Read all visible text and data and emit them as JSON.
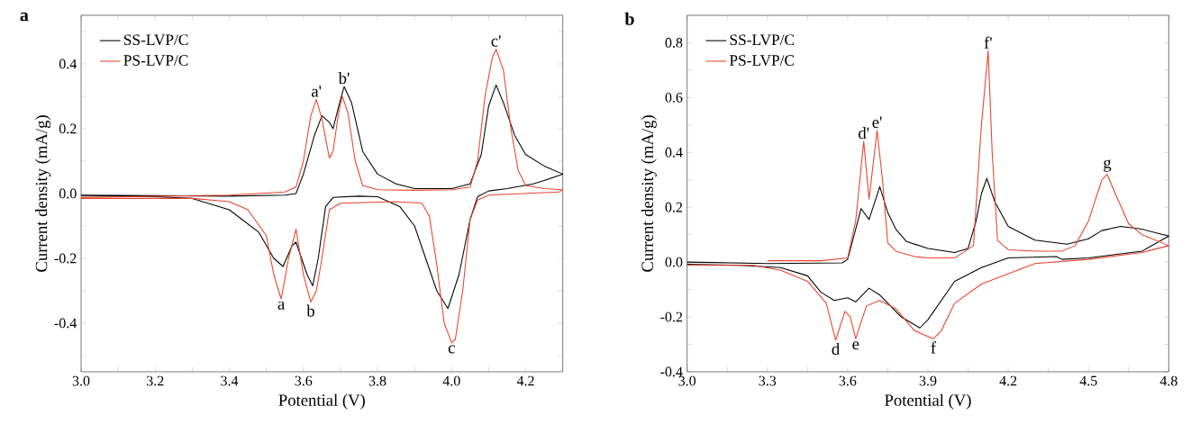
{
  "chart_data": [
    {
      "type": "line",
      "title": "a",
      "xlabel": "Potential (V)",
      "ylabel": "Current density (mA/g)",
      "xlim": [
        3.0,
        4.3
      ],
      "ylim": [
        -0.55,
        0.55
      ],
      "xticks": [
        {
          "value": 3.0,
          "label": "3.0"
        },
        {
          "value": 3.1,
          "label": null
        },
        3.2,
        {
          "value": 3.3,
          "label": null
        },
        3.4,
        {
          "value": 3.5,
          "label": null
        },
        3.6,
        {
          "value": 3.7,
          "label": null
        },
        3.8,
        {
          "value": 3.9,
          "label": null
        },
        {
          "value": 4.0,
          "label": "4.0"
        },
        {
          "value": 4.1,
          "label": null
        },
        4.2
      ],
      "yticks": [
        {
          "value": -0.5,
          "label": null
        },
        -0.4,
        {
          "value": -0.3,
          "label": null
        },
        -0.2,
        {
          "value": -0.1,
          "label": null
        },
        {
          "value": 0.0,
          "label": "0.0"
        },
        {
          "value": 0.1,
          "label": null
        },
        0.2,
        {
          "value": 0.3,
          "label": null
        },
        0.4,
        {
          "value": 0.5,
          "label": null
        }
      ],
      "grid": false,
      "legend": "top left",
      "marker": "none",
      "line_style": "solid",
      "series": [
        {
          "name": "SS-LVP/C",
          "color": "#000000",
          "x": [
            3.0,
            3.4,
            3.55,
            3.58,
            3.6,
            3.63,
            3.65,
            3.67,
            3.68,
            3.7,
            3.71,
            3.73,
            3.76,
            3.8,
            3.85,
            3.9,
            4.0,
            4.05,
            4.08,
            4.1,
            4.12,
            4.14,
            4.17,
            4.2,
            4.25,
            4.3,
            4.25,
            4.22,
            4.15,
            4.1,
            4.07,
            4.05,
            4.02,
            3.99,
            3.96,
            3.93,
            3.9,
            3.86,
            3.8,
            3.75,
            3.68,
            3.66,
            3.64,
            3.625,
            3.61,
            3.58,
            3.57,
            3.545,
            3.52,
            3.48,
            3.4,
            3.3,
            3.2,
            3.0
          ],
          "values": [
            -0.005,
            -0.008,
            -0.005,
            0.0,
            0.06,
            0.18,
            0.24,
            0.22,
            0.2,
            0.29,
            0.33,
            0.28,
            0.13,
            0.06,
            0.03,
            0.015,
            0.015,
            0.03,
            0.12,
            0.27,
            0.335,
            0.28,
            0.18,
            0.12,
            0.085,
            0.06,
            0.04,
            0.03,
            0.015,
            0.008,
            -0.01,
            -0.08,
            -0.25,
            -0.355,
            -0.3,
            -0.2,
            -0.1,
            -0.04,
            -0.01,
            -0.008,
            -0.012,
            -0.04,
            -0.2,
            -0.285,
            -0.25,
            -0.15,
            -0.16,
            -0.225,
            -0.2,
            -0.12,
            -0.05,
            -0.015,
            -0.01,
            -0.007
          ]
        },
        {
          "name": "PS-LVP/C",
          "color": "#e8442a",
          "x": [
            3.0,
            3.4,
            3.55,
            3.58,
            3.6,
            3.62,
            3.635,
            3.65,
            3.67,
            3.68,
            3.695,
            3.705,
            3.72,
            3.74,
            3.76,
            3.8,
            3.9,
            4.0,
            4.05,
            4.07,
            4.09,
            4.11,
            4.12,
            4.14,
            4.16,
            4.18,
            4.2,
            4.25,
            4.3,
            4.29,
            4.1,
            4.07,
            4.05,
            4.03,
            4.01,
            4.0,
            3.98,
            3.96,
            3.94,
            3.92,
            3.85,
            3.7,
            3.67,
            3.65,
            3.635,
            3.62,
            3.6,
            3.58,
            3.56,
            3.54,
            3.52,
            3.5,
            3.45,
            3.4,
            3.3,
            3.0
          ],
          "values": [
            -0.012,
            -0.005,
            0.005,
            0.02,
            0.1,
            0.24,
            0.29,
            0.23,
            0.11,
            0.13,
            0.25,
            0.3,
            0.25,
            0.1,
            0.025,
            0.012,
            0.01,
            0.012,
            0.02,
            0.1,
            0.3,
            0.42,
            0.445,
            0.38,
            0.2,
            0.07,
            0.025,
            0.015,
            0.012,
            0.005,
            -0.005,
            -0.02,
            -0.08,
            -0.3,
            -0.45,
            -0.46,
            -0.4,
            -0.22,
            -0.07,
            -0.03,
            -0.025,
            -0.03,
            -0.05,
            -0.2,
            -0.3,
            -0.335,
            -0.25,
            -0.11,
            -0.2,
            -0.325,
            -0.25,
            -0.13,
            -0.05,
            -0.025,
            -0.015,
            -0.015
          ]
        }
      ],
      "annotations": [
        {
          "text": "a",
          "x": 3.54,
          "y": -0.325
        },
        {
          "text": "b",
          "x": 3.62,
          "y": -0.335
        },
        {
          "text": "c",
          "x": 4.0,
          "y": -0.46
        },
        {
          "text": "a'",
          "x": 3.635,
          "y": 0.29
        },
        {
          "text": "b'",
          "x": 3.71,
          "y": 0.33
        },
        {
          "text": "c'",
          "x": 4.12,
          "y": 0.445
        }
      ]
    },
    {
      "type": "line",
      "title": "b",
      "xlabel": "Potential (V)",
      "ylabel": "Current density (mA/g)",
      "xlim": [
        3.0,
        4.8
      ],
      "ylim": [
        -0.4,
        0.9
      ],
      "xticks": [
        {
          "value": 3.0,
          "label": "3.0"
        },
        {
          "value": 3.15,
          "label": null
        },
        3.3,
        {
          "value": 3.45,
          "label": null
        },
        3.6,
        {
          "value": 3.75,
          "label": null
        },
        3.9,
        {
          "value": 4.05,
          "label": null
        },
        4.2,
        {
          "value": 4.35,
          "label": null
        },
        4.5,
        {
          "value": 4.65,
          "label": null
        },
        4.8
      ],
      "yticks": [
        -0.4,
        {
          "value": -0.3,
          "label": null
        },
        -0.2,
        {
          "value": -0.1,
          "label": null
        },
        {
          "value": 0.0,
          "label": "0.0"
        },
        {
          "value": 0.1,
          "label": null
        },
        0.2,
        {
          "value": 0.3,
          "label": null
        },
        0.4,
        {
          "value": 0.5,
          "label": null
        },
        0.6,
        {
          "value": 0.7,
          "label": null
        },
        0.8
      ],
      "grid": false,
      "legend": "top left",
      "marker": "none",
      "line_style": "solid",
      "series": [
        {
          "name": "SS-LVP/C",
          "color": "#000000",
          "x": [
            3.0,
            3.3,
            3.58,
            3.6,
            3.63,
            3.65,
            3.68,
            3.72,
            3.75,
            3.78,
            3.82,
            3.9,
            4.0,
            4.05,
            4.08,
            4.1,
            4.12,
            4.15,
            4.2,
            4.3,
            4.42,
            4.5,
            4.55,
            4.62,
            4.7,
            4.8,
            4.7,
            4.5,
            4.4,
            4.38,
            4.2,
            4.1,
            4.0,
            3.95,
            3.9,
            3.87,
            3.8,
            3.72,
            3.68,
            3.63,
            3.6,
            3.55,
            3.5,
            3.45,
            3.35,
            3.2,
            3.0
          ],
          "values": [
            0.0,
            -0.005,
            -0.003,
            0.01,
            0.12,
            0.195,
            0.155,
            0.275,
            0.18,
            0.12,
            0.075,
            0.05,
            0.035,
            0.05,
            0.15,
            0.25,
            0.305,
            0.22,
            0.13,
            0.08,
            0.065,
            0.085,
            0.115,
            0.13,
            0.12,
            0.095,
            0.04,
            0.015,
            0.01,
            0.02,
            0.015,
            -0.02,
            -0.07,
            -0.14,
            -0.21,
            -0.24,
            -0.2,
            -0.12,
            -0.095,
            -0.145,
            -0.13,
            -0.14,
            -0.11,
            -0.05,
            -0.02,
            -0.012,
            -0.008
          ]
        },
        {
          "name": "PS-LVP/C",
          "color": "#e8442a",
          "x": [
            3.3,
            3.5,
            3.6,
            3.63,
            3.66,
            3.68,
            3.71,
            3.73,
            3.75,
            3.78,
            3.85,
            3.9,
            4.0,
            4.07,
            4.1,
            4.125,
            4.14,
            4.16,
            4.2,
            4.3,
            4.4,
            4.45,
            4.5,
            4.55,
            4.57,
            4.6,
            4.65,
            4.7,
            4.8,
            4.7,
            4.5,
            4.3,
            4.1,
            4.0,
            3.95,
            3.92,
            3.85,
            3.78,
            3.72,
            3.67,
            3.63,
            3.61,
            3.59,
            3.555,
            3.52,
            3.45,
            3.35,
            3.25,
            3.1,
            3.0
          ],
          "values": [
            0.005,
            0.005,
            0.015,
            0.15,
            0.44,
            0.23,
            0.48,
            0.3,
            0.07,
            0.04,
            0.02,
            0.015,
            0.015,
            0.06,
            0.5,
            0.77,
            0.4,
            0.08,
            0.045,
            0.04,
            0.04,
            0.06,
            0.15,
            0.3,
            0.32,
            0.25,
            0.14,
            0.1,
            0.06,
            0.035,
            0.01,
            -0.005,
            -0.08,
            -0.15,
            -0.25,
            -0.28,
            -0.25,
            -0.17,
            -0.14,
            -0.16,
            -0.28,
            -0.2,
            -0.18,
            -0.285,
            -0.15,
            -0.07,
            -0.03,
            -0.012,
            -0.012,
            -0.012
          ]
        }
      ],
      "annotations": [
        {
          "text": "d",
          "x": 3.555,
          "y": -0.285
        },
        {
          "text": "e",
          "x": 3.63,
          "y": -0.28
        },
        {
          "text": "f",
          "x": 3.92,
          "y": -0.28
        },
        {
          "text": "d'",
          "x": 3.66,
          "y": 0.44
        },
        {
          "text": "e'",
          "x": 3.71,
          "y": 0.48
        },
        {
          "text": "f'",
          "x": 4.125,
          "y": 0.77
        },
        {
          "text": "g",
          "x": 4.57,
          "y": 0.32
        }
      ]
    }
  ]
}
